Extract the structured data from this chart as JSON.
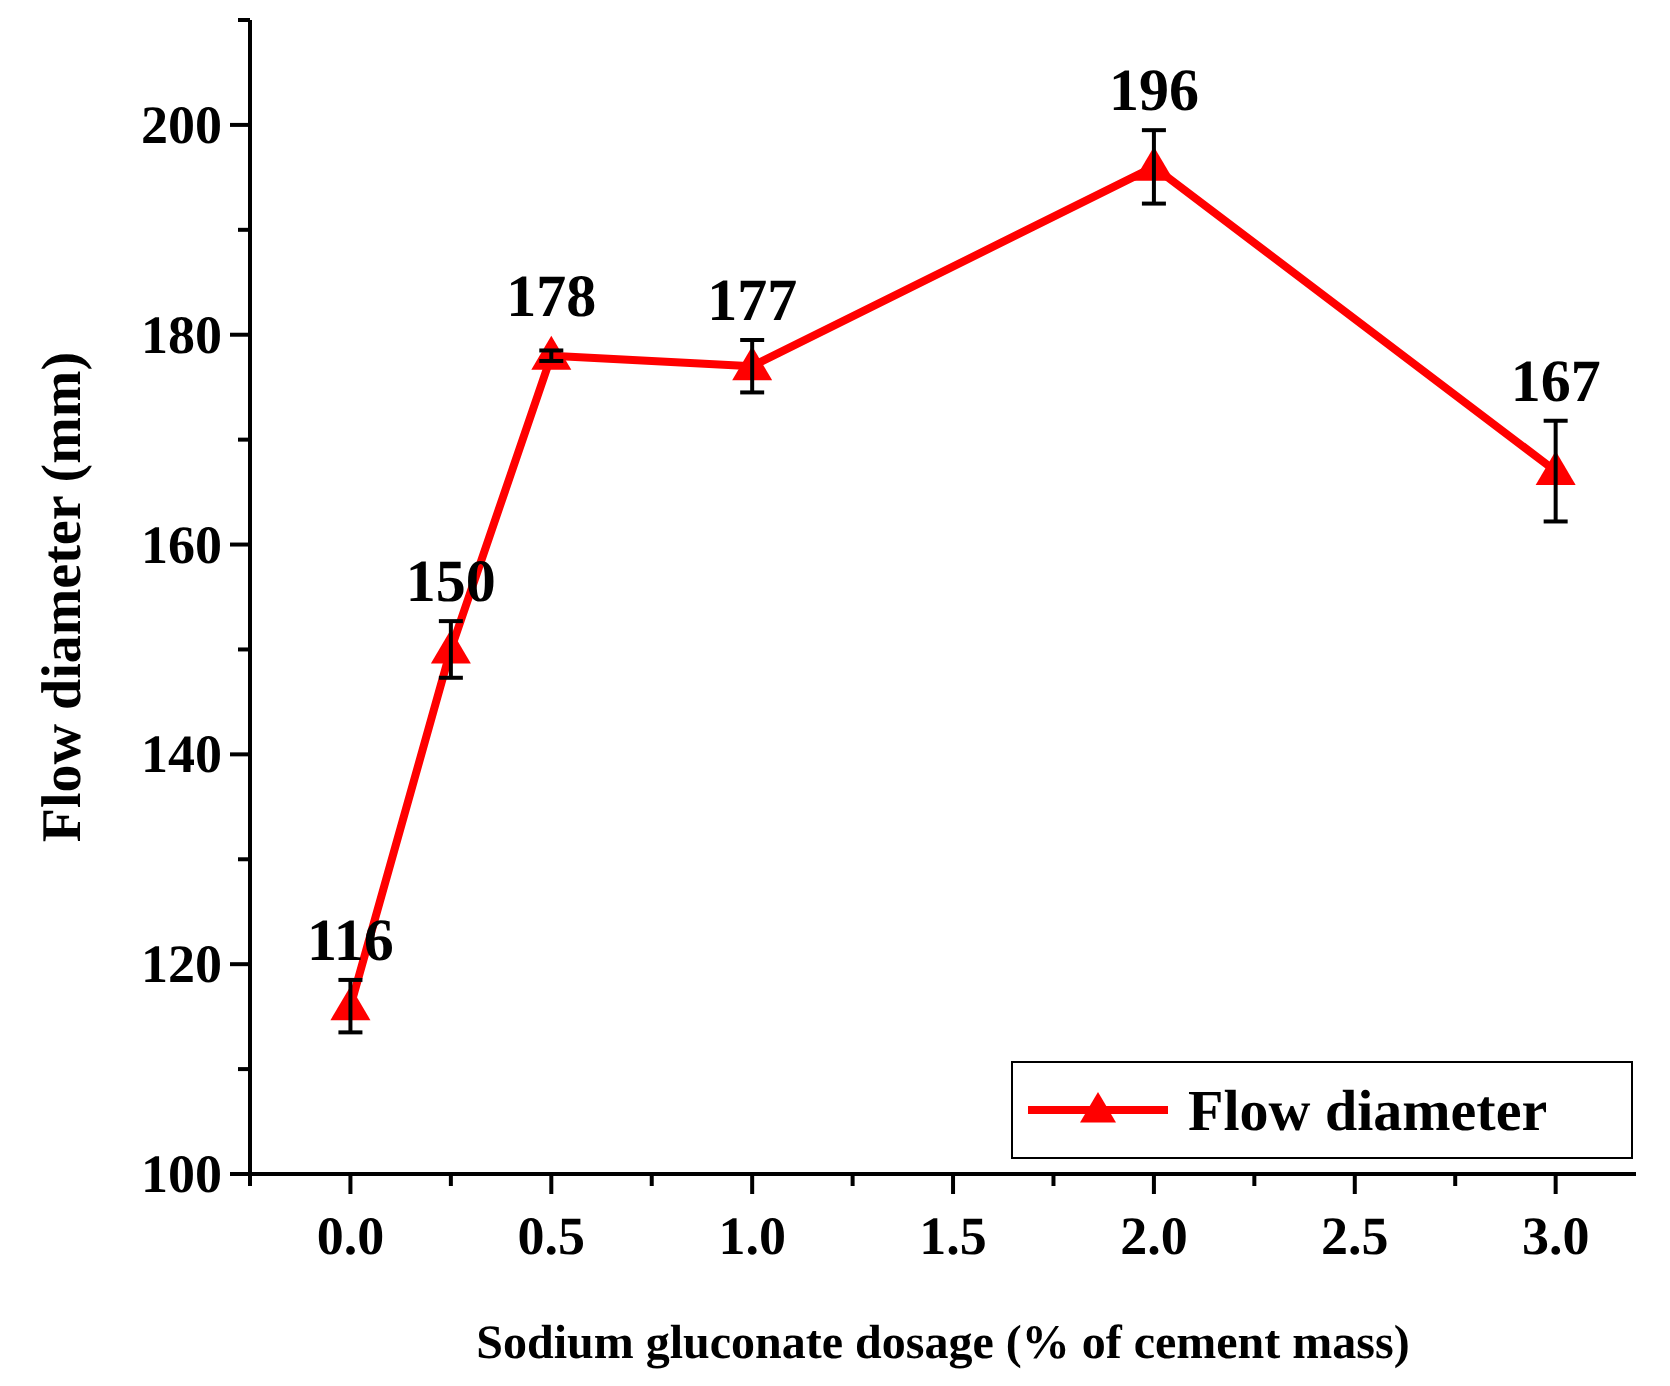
{
  "chart_data": {
    "type": "line",
    "xlabel": "Sodium gluconate dosage (% of cement mass)",
    "ylabel": "Flow diameter (mm)",
    "x": [
      0,
      0.25,
      0.5,
      1,
      2,
      3
    ],
    "series": [
      {
        "name": "Flow diameter",
        "color": "#ff0000",
        "values": [
          116,
          150,
          178,
          177,
          196,
          167
        ],
        "errors": [
          2.5,
          2.7,
          0.5,
          2.5,
          3.5,
          4.8
        ]
      }
    ],
    "xlim": [
      -0.25,
      3.2
    ],
    "xticks": [
      {
        "value": -0.25,
        "label": null
      },
      {
        "value": 0,
        "label": "0.0"
      },
      {
        "value": 0.25,
        "label": null
      },
      0.5,
      {
        "value": 0.75,
        "label": null
      },
      {
        "value": 1,
        "label": "1.0"
      },
      {
        "value": 1.25,
        "label": null
      },
      1.5,
      {
        "value": 1.75,
        "label": null
      },
      {
        "value": 2,
        "label": "2.0"
      },
      {
        "value": 2.25,
        "label": null
      },
      2.5,
      {
        "value": 2.75,
        "label": null
      },
      {
        "value": 3,
        "label": "3.0"
      }
    ],
    "ylim": [
      100,
      210
    ],
    "yticks": [
      100,
      {
        "value": 110,
        "label": null
      },
      120,
      {
        "value": 130,
        "label": null
      },
      140,
      {
        "value": 150,
        "label": null
      },
      160,
      {
        "value": 170,
        "label": null
      },
      180,
      {
        "value": 190,
        "label": null
      },
      200,
      {
        "value": 210,
        "label": null
      }
    ],
    "data_labels": true,
    "marker": "triangle",
    "line_style": "solid",
    "legend": "bottom right",
    "grid": false
  }
}
